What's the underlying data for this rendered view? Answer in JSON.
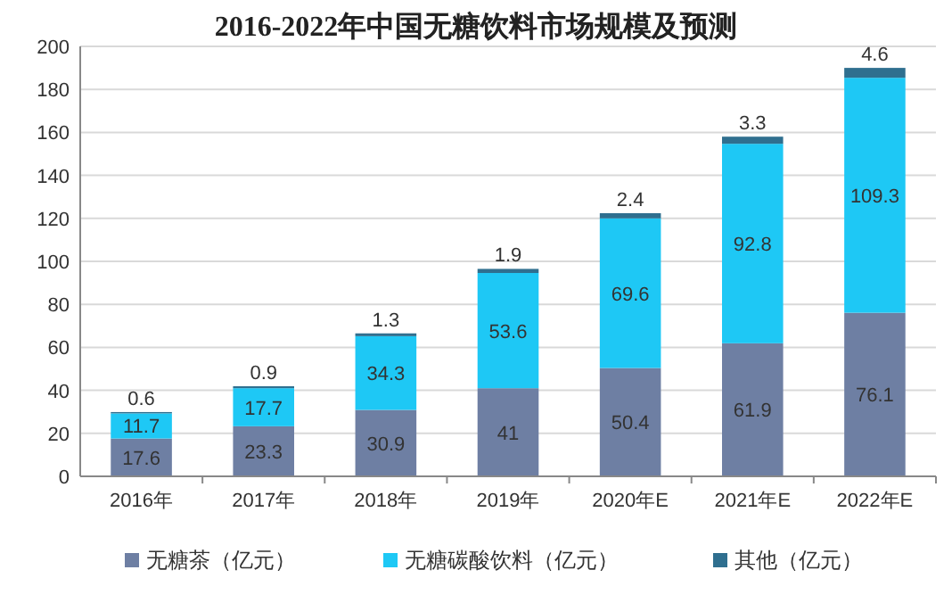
{
  "chart_data": {
    "type": "bar",
    "title": "2016-2022年中国无糖饮料市场规模及预测",
    "categories": [
      "2016年",
      "2017年",
      "2018年",
      "2019年",
      "2020年E",
      "2021年E",
      "2022年E"
    ],
    "series": [
      {
        "name": "无糖茶（亿元）",
        "color": "#6e7fa3",
        "values": [
          17.6,
          23.3,
          30.9,
          41,
          50.4,
          61.9,
          76.1
        ]
      },
      {
        "name": "无糖碳酸饮料（亿元）",
        "color": "#1ec8f5",
        "values": [
          11.7,
          17.7,
          34.3,
          53.6,
          69.6,
          92.8,
          109.3
        ]
      },
      {
        "name": "其他（亿元）",
        "color": "#2f6f8f",
        "values": [
          0.6,
          0.9,
          1.3,
          1.9,
          2.4,
          3.3,
          4.6
        ]
      }
    ],
    "stacked": true,
    "ylim": [
      0,
      200
    ],
    "yticks": [
      0,
      20,
      40,
      60,
      80,
      100,
      120,
      140,
      160,
      180,
      200
    ],
    "grid": "y",
    "legend": "bottom",
    "data_labels": true
  }
}
